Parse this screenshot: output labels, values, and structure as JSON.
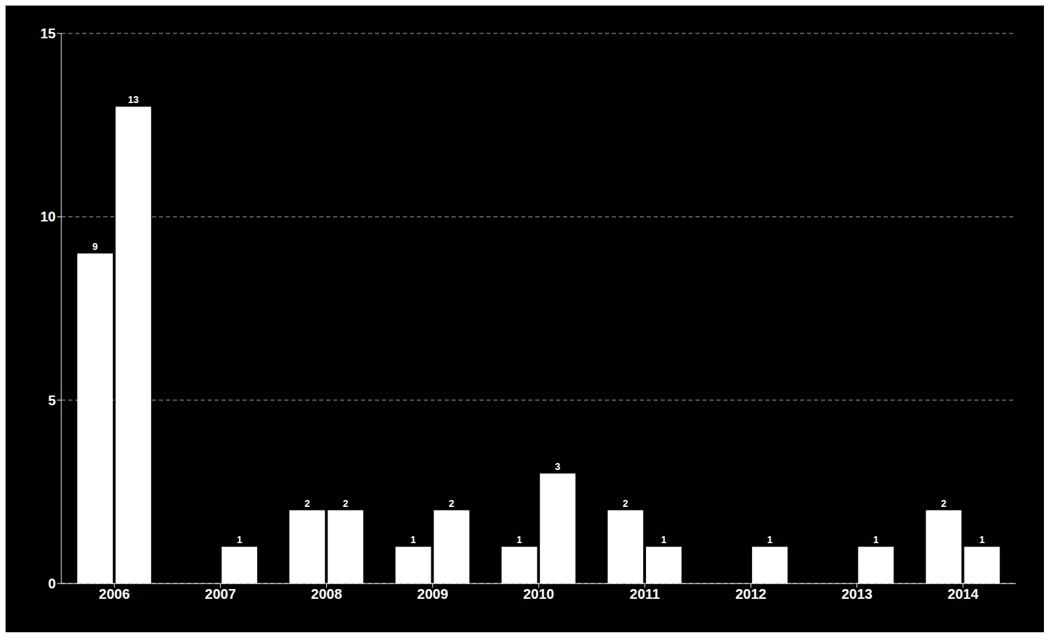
{
  "chart_data": {
    "type": "bar",
    "categories": [
      "2006",
      "2007",
      "2008",
      "2009",
      "2010",
      "2011",
      "2012",
      "2013",
      "2014"
    ],
    "series": [
      {
        "color": "#ffffff",
        "values": [
          9,
          0,
          2,
          1,
          1,
          2,
          0,
          0,
          2
        ]
      },
      {
        "color": "#ffffff",
        "values": [
          13,
          1,
          2,
          2,
          3,
          1,
          1,
          1,
          1
        ]
      }
    ],
    "ylim": [
      0,
      15
    ],
    "yticks": [
      0,
      5,
      10,
      15
    ],
    "grid": true,
    "data_labels": true
  }
}
